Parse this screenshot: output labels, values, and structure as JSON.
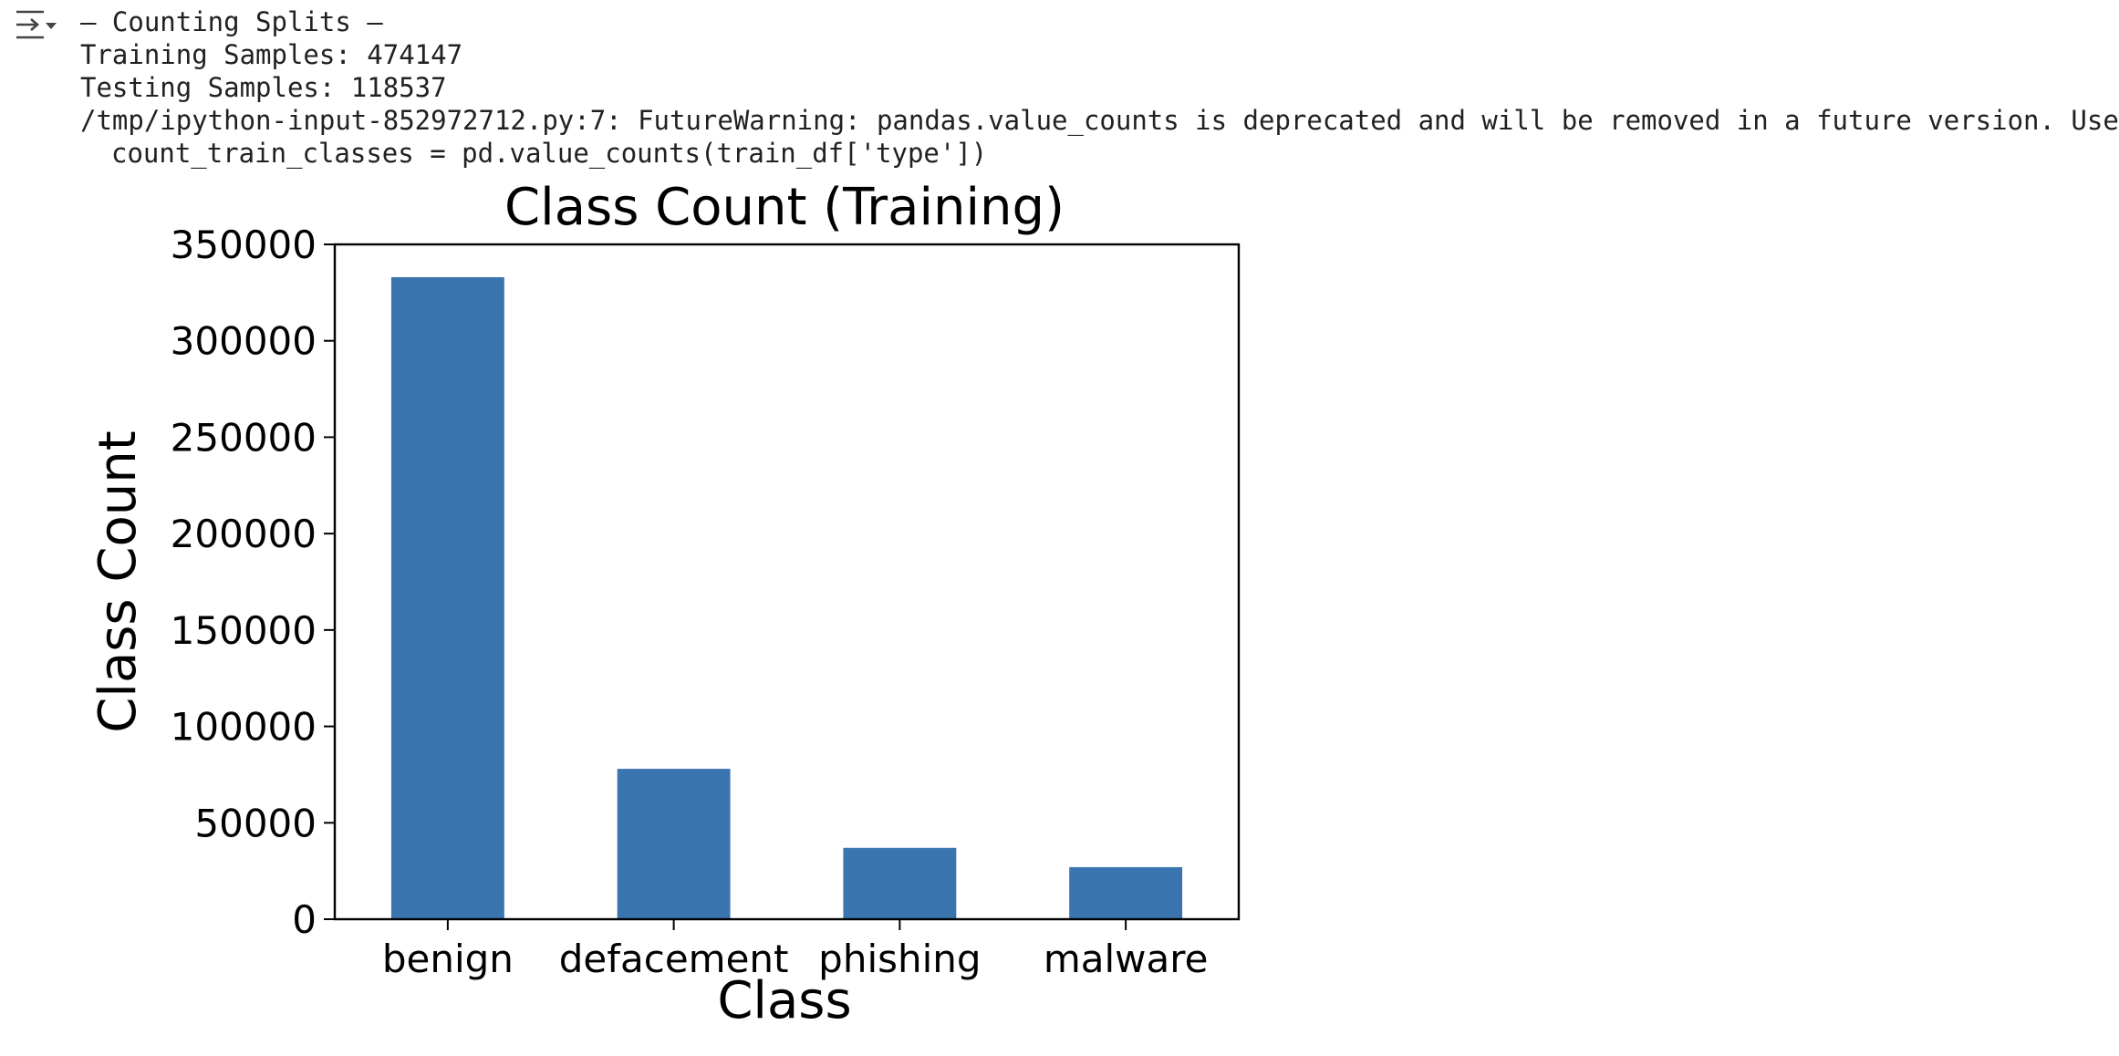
{
  "output": {
    "toggle_icon": "collapse-output-icon",
    "lines": [
      "– Counting Splits –",
      "Training Samples: 474147",
      "Testing Samples: 118537",
      "/tmp/ipython-input-852972712.py:7: FutureWarning: pandas.value_counts is deprecated and will be removed in a future version. Use",
      "count_train_classes = pd.value_counts(train_df['type'])"
    ]
  },
  "chart_data": {
    "type": "bar",
    "title": "Class Count (Training)",
    "xlabel": "Class",
    "ylabel": "Class Count",
    "categories": [
      "benign",
      "defacement",
      "phishing",
      "malware"
    ],
    "values": [
      333000,
      78000,
      37000,
      27000
    ],
    "ylim": [
      0,
      350000
    ],
    "yticks": [
      0,
      50000,
      100000,
      150000,
      200000,
      250000,
      300000,
      350000
    ],
    "ytick_labels": [
      "0",
      "50000",
      "100000",
      "150000",
      "200000",
      "250000",
      "300000",
      "350000"
    ],
    "bar_color": "#3b75af",
    "grid": false
  }
}
